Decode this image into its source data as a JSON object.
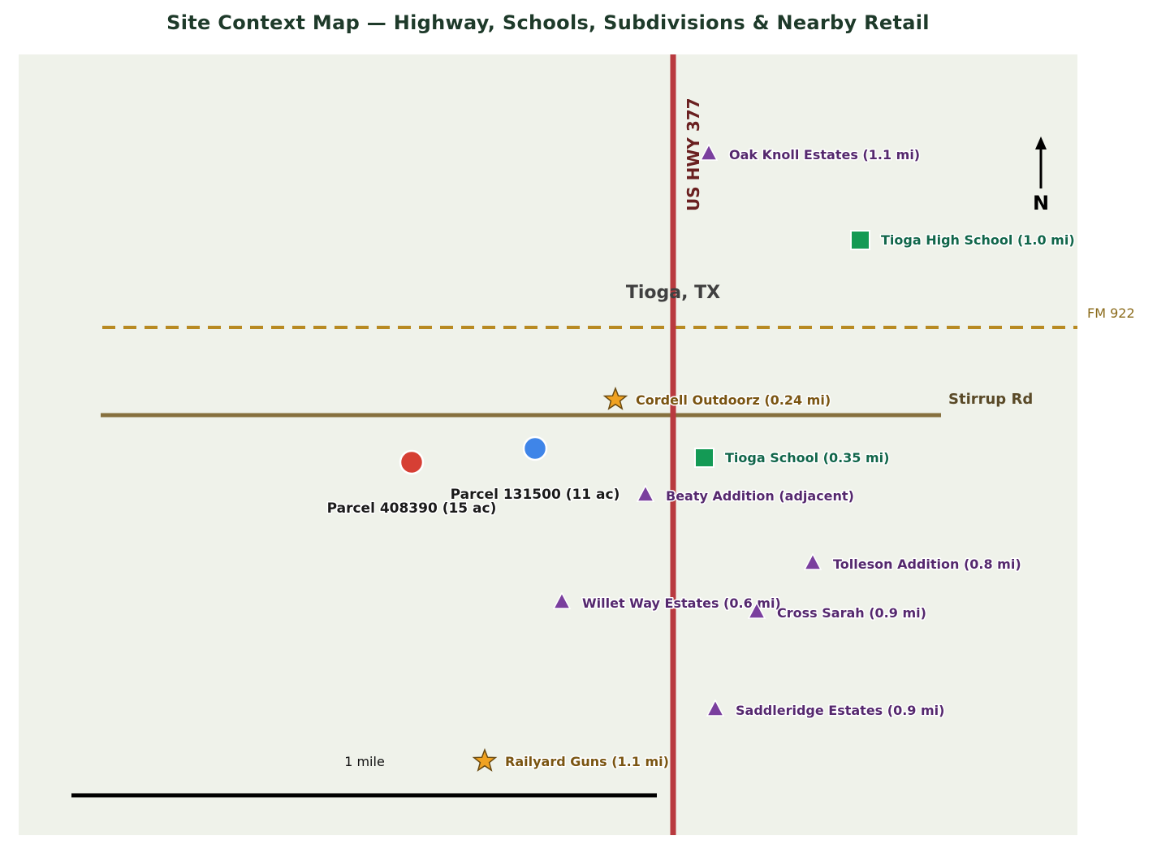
{
  "title": "Site Context Map — Highway, Schools, Subdivisions & Nearby Retail",
  "place_label": "Tioga, TX",
  "roads": {
    "highway": "US HWY 377",
    "fm_road": "FM 922",
    "stirrup": "Stirrup Rd"
  },
  "parcels": [
    {
      "label": "Parcel 408390 (15 ac)",
      "color": "#d63f34"
    },
    {
      "label": "Parcel 131500 (11 ac)",
      "color": "#3f85e8"
    }
  ],
  "schools": [
    {
      "label": "Tioga High School (1.0 mi)"
    },
    {
      "label": "Tioga School (0.35 mi)"
    }
  ],
  "subdivisions": [
    {
      "label": "Oak Knoll Estates (1.1 mi)"
    },
    {
      "label": "Beaty Addition (adjacent)"
    },
    {
      "label": "Tolleson Addition (0.8 mi)"
    },
    {
      "label": "Willet Way Estates (0.6 mi)"
    },
    {
      "label": "Cross Sarah (0.9 mi)"
    },
    {
      "label": "Saddleridge Estates (0.9 mi)"
    }
  ],
  "retail": [
    {
      "label": "Cordell Outdoorz (0.24 mi)"
    },
    {
      "label": "Railyard Guns (1.1 mi)"
    }
  ],
  "scale_label": "1 mile",
  "north_label": "N",
  "colors": {
    "background": "#eff2ea",
    "highway": "#b93a3f",
    "fm_road": "#b88a22",
    "stirrup": "#86703e",
    "school": "#149a55",
    "subdivision": "#7a3f9e",
    "retail": "#f0a221"
  },
  "icons": {
    "school": "square-marker-icon",
    "subdivision": "triangle-marker-icon",
    "retail": "star-marker-icon",
    "parcel": "circle-marker-icon",
    "north": "north-arrow-icon"
  }
}
